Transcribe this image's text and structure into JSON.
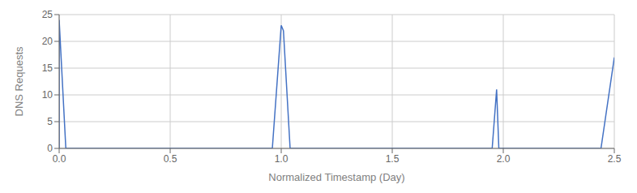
{
  "chart_data": {
    "type": "line",
    "xlabel": "Normalized Timestamp (Day)",
    "ylabel": "DNS Requests",
    "x": [
      0.0,
      0.0,
      0.03,
      0.04,
      0.94,
      0.96,
      1.0,
      1.01,
      1.04,
      1.05,
      1.92,
      1.95,
      1.97,
      1.98,
      2.44,
      2.5
    ],
    "values": [
      0,
      24,
      0,
      0,
      0,
      0,
      23,
      22,
      0,
      0,
      0,
      0,
      11,
      0,
      0,
      17
    ],
    "color": "#4472C4",
    "xlim": [
      0.0,
      2.5
    ],
    "ylim": [
      0,
      25
    ],
    "xticks": [
      {
        "value": 0.0,
        "label": "0.0"
      },
      0.5,
      {
        "value": 1.0,
        "label": "1.0"
      },
      1.5,
      {
        "value": 2.0,
        "label": "2.0"
      },
      2.5
    ],
    "yticks": [
      0,
      5,
      10,
      15,
      20,
      25
    ],
    "grid": true
  }
}
